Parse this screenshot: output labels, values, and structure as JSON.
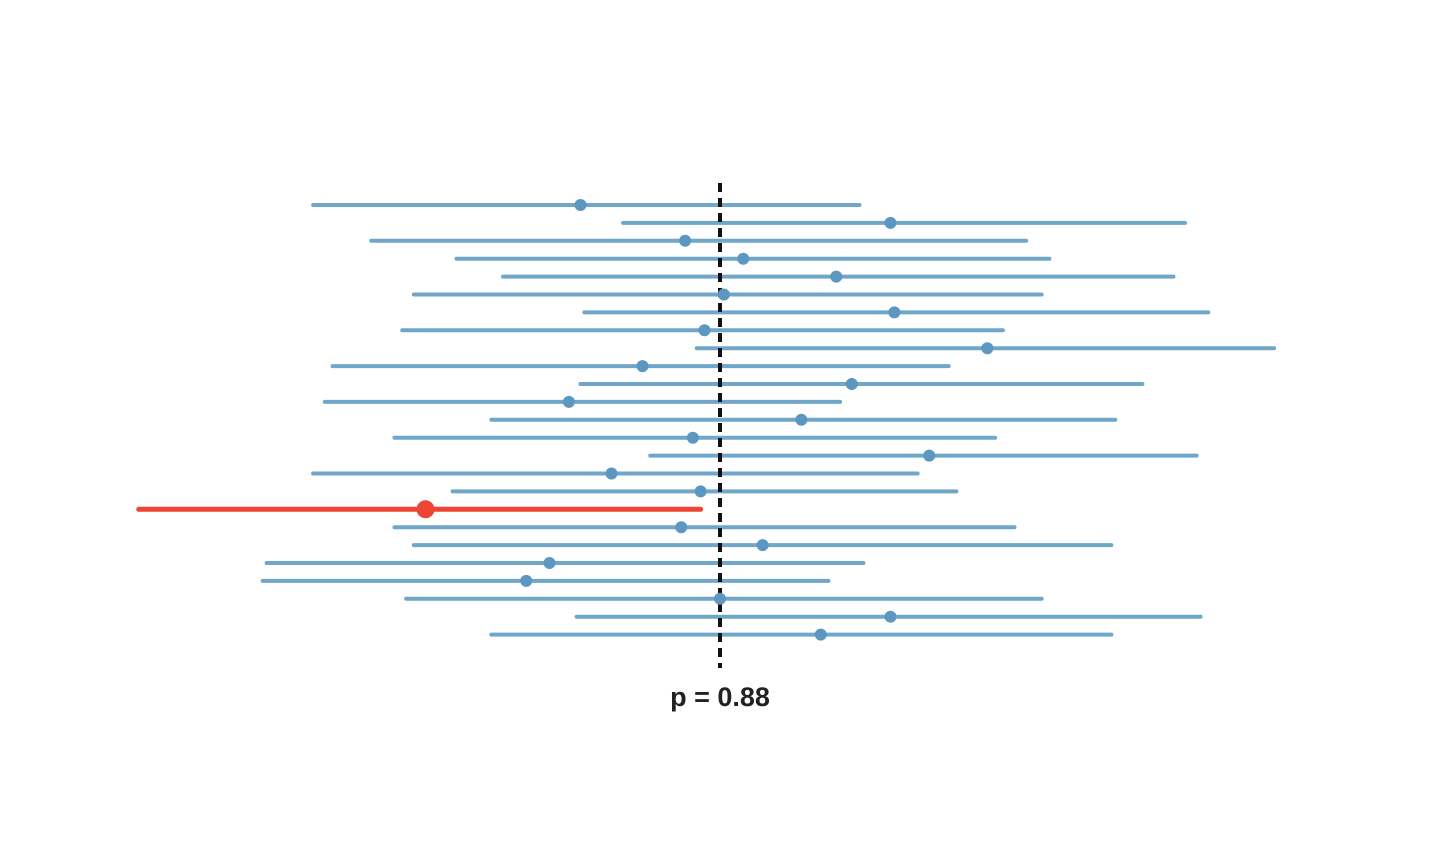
{
  "chart_data": {
    "type": "interval",
    "reference": {
      "value": 0.88,
      "label": "p = 0.88"
    },
    "intervals": [
      {
        "estimate": 0.844,
        "lower": 0.775,
        "upper": 0.916,
        "missed": false
      },
      {
        "estimate": 0.924,
        "lower": 0.855,
        "upper": 1.0,
        "missed": false
      },
      {
        "estimate": 0.871,
        "lower": 0.79,
        "upper": 0.959,
        "missed": false
      },
      {
        "estimate": 0.886,
        "lower": 0.812,
        "upper": 0.965,
        "missed": false
      },
      {
        "estimate": 0.91,
        "lower": 0.824,
        "upper": 0.997,
        "missed": false
      },
      {
        "estimate": 0.881,
        "lower": 0.801,
        "upper": 0.963,
        "missed": false
      },
      {
        "estimate": 0.925,
        "lower": 0.845,
        "upper": 1.006,
        "missed": false
      },
      {
        "estimate": 0.876,
        "lower": 0.798,
        "upper": 0.953,
        "missed": false
      },
      {
        "estimate": 0.949,
        "lower": 0.874,
        "upper": 1.023,
        "missed": false
      },
      {
        "estimate": 0.86,
        "lower": 0.78,
        "upper": 0.939,
        "missed": false
      },
      {
        "estimate": 0.914,
        "lower": 0.844,
        "upper": 0.989,
        "missed": false
      },
      {
        "estimate": 0.841,
        "lower": 0.778,
        "upper": 0.911,
        "missed": false
      },
      {
        "estimate": 0.901,
        "lower": 0.821,
        "upper": 0.982,
        "missed": false
      },
      {
        "estimate": 0.873,
        "lower": 0.796,
        "upper": 0.951,
        "missed": false
      },
      {
        "estimate": 0.934,
        "lower": 0.862,
        "upper": 1.003,
        "missed": false
      },
      {
        "estimate": 0.852,
        "lower": 0.775,
        "upper": 0.931,
        "missed": false
      },
      {
        "estimate": 0.875,
        "lower": 0.811,
        "upper": 0.941,
        "missed": false
      },
      {
        "estimate": 0.804,
        "lower": 0.73,
        "upper": 0.875,
        "missed": true
      },
      {
        "estimate": 0.87,
        "lower": 0.796,
        "upper": 0.956,
        "missed": false
      },
      {
        "estimate": 0.891,
        "lower": 0.801,
        "upper": 0.981,
        "missed": false
      },
      {
        "estimate": 0.836,
        "lower": 0.763,
        "upper": 0.917,
        "missed": false
      },
      {
        "estimate": 0.83,
        "lower": 0.762,
        "upper": 0.908,
        "missed": false
      },
      {
        "estimate": 0.88,
        "lower": 0.799,
        "upper": 0.963,
        "missed": false
      },
      {
        "estimate": 0.924,
        "lower": 0.843,
        "upper": 1.004,
        "missed": false
      },
      {
        "estimate": 0.906,
        "lower": 0.821,
        "upper": 0.981,
        "missed": false
      }
    ],
    "colors": {
      "interval": "#6fa6c9",
      "point": "#5b97c0",
      "missed": "#ee4433",
      "reference": "#111111"
    },
    "xlim": [
      0.72,
      1.04
    ],
    "grid": false,
    "axes_shown": false
  }
}
